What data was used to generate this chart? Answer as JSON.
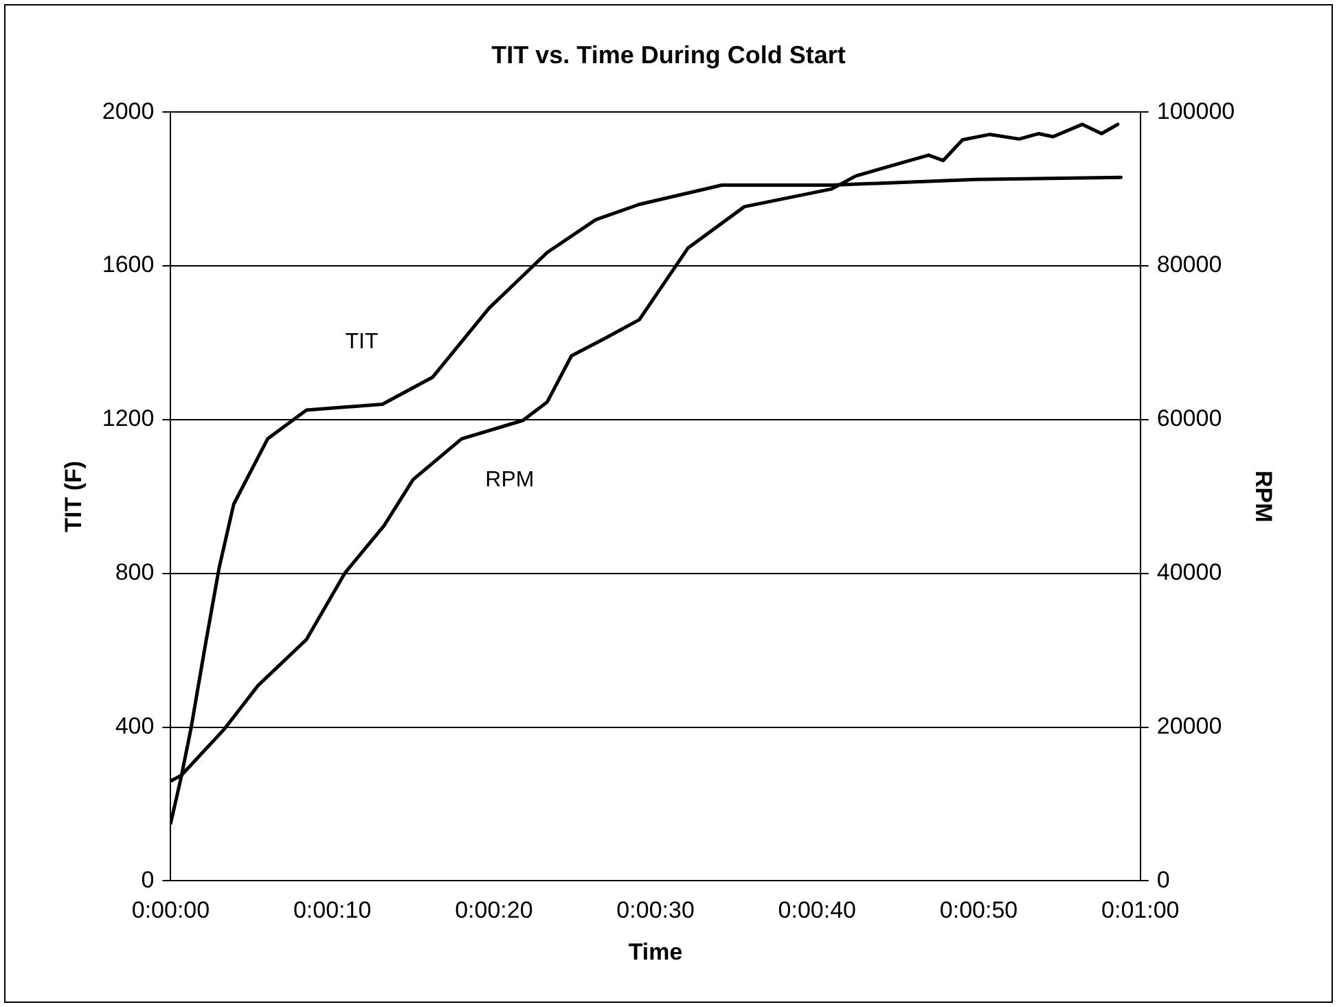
{
  "chart_data": {
    "type": "line",
    "title": "TIT vs. Time During Cold Start",
    "xlabel": "Time",
    "ylabel": "TIT (F)",
    "y2label": "RPM",
    "xlim": [
      0,
      60
    ],
    "xticks": [
      {
        "value": 0,
        "label": "0:00:00"
      },
      {
        "value": 10,
        "label": "0:00:10"
      },
      {
        "value": 20,
        "label": "0:00:20"
      },
      {
        "value": 30,
        "label": "0:00:30"
      },
      {
        "value": 40,
        "label": "0:00:40"
      },
      {
        "value": 50,
        "label": "0:00:50"
      },
      {
        "value": 60,
        "label": "0:01:00"
      }
    ],
    "ylim": [
      0,
      2000
    ],
    "yticks": [
      0,
      400,
      800,
      1200,
      1600,
      2000
    ],
    "y2lim": [
      0,
      100000
    ],
    "y2ticks": [
      0,
      20000,
      40000,
      60000,
      80000,
      100000
    ],
    "grid": "y",
    "legend": false,
    "marker": "none",
    "line_style": "solid",
    "series": [
      {
        "name": "TIT",
        "color": "#000000",
        "x": [
          0,
          0.65,
          1.25,
          2.15,
          3.0,
          3.9,
          6.0,
          8.4,
          13.1,
          16.2,
          19.7,
          23.3,
          26.3,
          29.0,
          34.1,
          40.9,
          49.8,
          58.8
        ],
        "values": [
          150,
          270,
          395,
          615,
          815,
          980,
          1150,
          1225,
          1240,
          1310,
          1490,
          1635,
          1720,
          1760,
          1810,
          1810,
          1825,
          1830
        ]
      },
      {
        "name": "RPM",
        "color": "#000000",
        "axis": "y2",
        "x": [
          0,
          0.65,
          3.3,
          5.4,
          8.4,
          10.8,
          13.2,
          15.0,
          18.0,
          21.8,
          23.3,
          24.8,
          26.9,
          29.0,
          32.0,
          35.5,
          40.9,
          42.4,
          45.4,
          46.9,
          47.8,
          49.0,
          50.7,
          52.5,
          53.7,
          54.6,
          56.4,
          57.6,
          58.6
        ],
        "values": [
          13000,
          13700,
          19700,
          25400,
          31400,
          40100,
          46200,
          52200,
          57500,
          59900,
          62300,
          68300,
          70600,
          73000,
          82300,
          87700,
          90000,
          91700,
          93500,
          94400,
          93700,
          96400,
          97100,
          96500,
          97200,
          96800,
          98400,
          97200,
          98400
        ]
      }
    ]
  }
}
